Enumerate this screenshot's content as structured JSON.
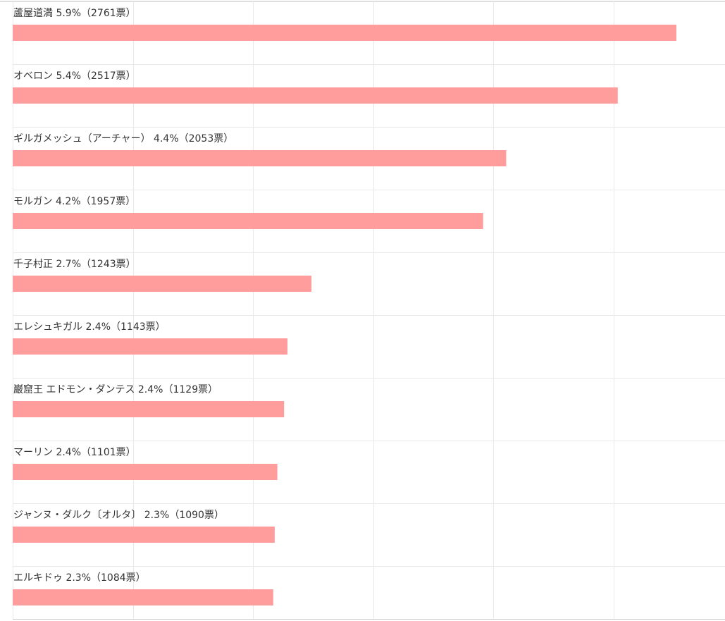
{
  "chart_data": {
    "type": "bar",
    "orientation": "horizontal",
    "categories": [
      "蘆屋道満 5.9%（2761票）",
      "オベロン 5.4%（2517票）",
      "ギルガメッシュ（アーチャー） 4.4%（2053票）",
      "モルガン 4.2%（1957票）",
      "千子村正 2.7%（1243票）",
      "エレシュキガル 2.4%（1143票）",
      "巌窟王 エドモン・ダンテス 2.4%（1129票）",
      "マーリン 2.4%（1101票）",
      "ジャンヌ・ダルク〔オルタ〕 2.3%（1090票）",
      "エルキドゥ 2.3%（1084票）"
    ],
    "values": [
      2761,
      2517,
      2053,
      1957,
      1243,
      1143,
      1129,
      1101,
      1090,
      1084
    ],
    "xlim": [
      0,
      3000
    ],
    "grid": true,
    "legend": "none",
    "bar_color": "#ff9c9c",
    "grid_color": "#e9e9e9"
  }
}
